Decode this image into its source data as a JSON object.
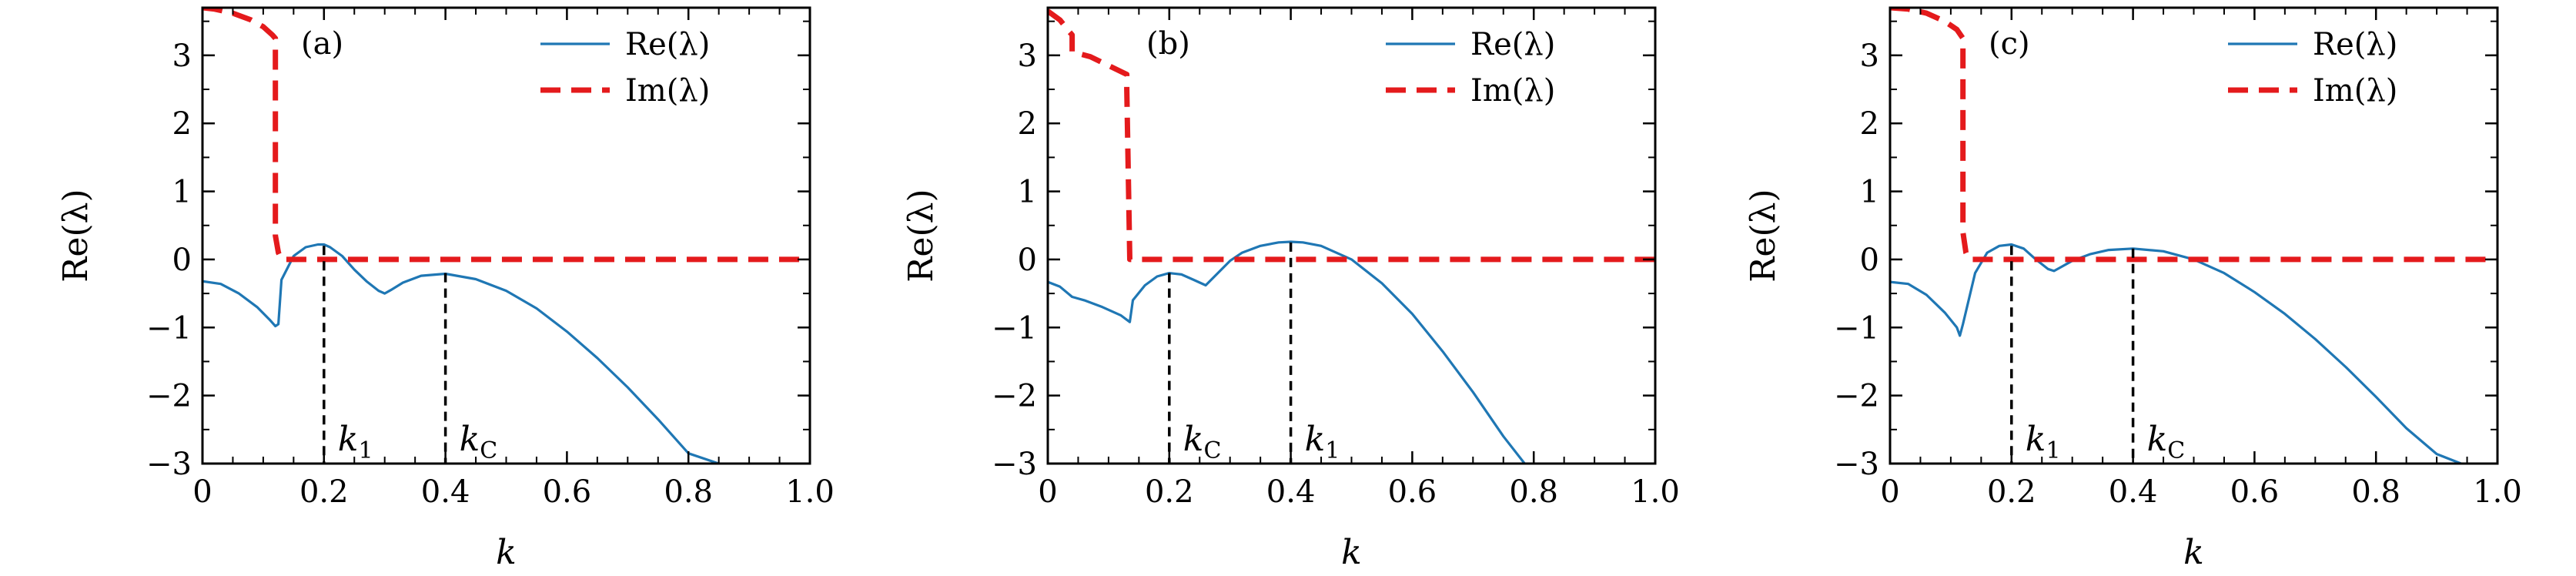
{
  "chart_data": [
    {
      "type": "line",
      "panel_label": "(a)",
      "xlabel": "k",
      "ylabel": "Re(λ)",
      "xlim": [
        0,
        1.0
      ],
      "ylim": [
        -3,
        3.7
      ],
      "xticks": [
        "0",
        "0.2",
        "0.4",
        "0.6",
        "0.8",
        "1.0"
      ],
      "yticks": [
        "3",
        "2",
        "1",
        "0",
        "−1",
        "−2",
        "−3"
      ],
      "legend_position": "top-right",
      "series": [
        {
          "name": "Re(λ)",
          "color": "#1f77b4",
          "style": "solid",
          "x": [
            0.0,
            0.03,
            0.06,
            0.09,
            0.11,
            0.12,
            0.125,
            0.13,
            0.15,
            0.17,
            0.19,
            0.2,
            0.21,
            0.23,
            0.25,
            0.27,
            0.29,
            0.3,
            0.31,
            0.33,
            0.36,
            0.4,
            0.45,
            0.5,
            0.55,
            0.6,
            0.65,
            0.7,
            0.75,
            0.8,
            0.85
          ],
          "y": [
            -0.32,
            -0.36,
            -0.5,
            -0.7,
            -0.88,
            -0.98,
            -0.95,
            -0.3,
            0.05,
            0.18,
            0.22,
            0.22,
            0.18,
            0.05,
            -0.15,
            -0.32,
            -0.46,
            -0.5,
            -0.45,
            -0.34,
            -0.24,
            -0.21,
            -0.29,
            -0.46,
            -0.72,
            -1.06,
            -1.45,
            -1.88,
            -2.35,
            -2.85,
            -3.0
          ]
        },
        {
          "name": "Im(λ)",
          "color": "#e41a1c",
          "style": "dashed",
          "x": [
            0.0,
            0.02,
            0.05,
            0.08,
            0.1,
            0.115,
            0.12,
            0.12,
            0.125,
            0.13,
            1.0
          ],
          "y": [
            3.7,
            3.68,
            3.62,
            3.52,
            3.42,
            3.3,
            3.25,
            0.35,
            0.1,
            0.0,
            0.0
          ]
        }
      ],
      "markers": [
        {
          "x": 0.2,
          "y_top": 0.2,
          "label": "k",
          "sub": "1"
        },
        {
          "x": 0.4,
          "y_top": -0.2,
          "label": "k",
          "sub": "C"
        }
      ]
    },
    {
      "type": "line",
      "panel_label": "(b)",
      "xlabel": "k",
      "ylabel": "Re(λ)",
      "xlim": [
        0,
        1.0
      ],
      "ylim": [
        -3,
        3.7
      ],
      "xticks": [
        "0",
        "0.2",
        "0.4",
        "0.6",
        "0.8",
        "1.0"
      ],
      "yticks": [
        "3",
        "2",
        "1",
        "0",
        "−1",
        "−2",
        "−3"
      ],
      "legend_position": "top-right",
      "series": [
        {
          "name": "Re(λ)",
          "color": "#1f77b4",
          "style": "solid",
          "x": [
            0.0,
            0.02,
            0.04,
            0.06,
            0.09,
            0.12,
            0.135,
            0.14,
            0.16,
            0.18,
            0.2,
            0.22,
            0.24,
            0.26,
            0.28,
            0.3,
            0.32,
            0.35,
            0.38,
            0.4,
            0.42,
            0.45,
            0.5,
            0.55,
            0.6,
            0.65,
            0.7,
            0.75,
            0.785
          ],
          "y": [
            -0.33,
            -0.4,
            -0.55,
            -0.6,
            -0.7,
            -0.82,
            -0.92,
            -0.6,
            -0.38,
            -0.25,
            -0.2,
            -0.22,
            -0.3,
            -0.38,
            -0.2,
            -0.02,
            0.1,
            0.2,
            0.25,
            0.26,
            0.25,
            0.2,
            0.0,
            -0.35,
            -0.8,
            -1.35,
            -1.95,
            -2.6,
            -3.0
          ]
        },
        {
          "name": "Im(λ)",
          "color": "#e41a1c",
          "style": "dashed",
          "x": [
            0.0,
            0.02,
            0.035,
            0.04,
            0.04,
            0.07,
            0.1,
            0.13,
            0.13,
            0.135,
            1.0
          ],
          "y": [
            3.65,
            3.52,
            3.35,
            3.3,
            3.05,
            2.98,
            2.85,
            2.72,
            2.5,
            0.0,
            0.0
          ]
        }
      ],
      "markers": [
        {
          "x": 0.2,
          "y_top": -0.2,
          "label": "k",
          "sub": "C"
        },
        {
          "x": 0.4,
          "y_top": 0.25,
          "label": "k",
          "sub": "1"
        }
      ]
    },
    {
      "type": "line",
      "panel_label": "(c)",
      "xlabel": "k",
      "ylabel": "Re(λ)",
      "xlim": [
        0,
        1.0
      ],
      "ylim": [
        -3,
        3.7
      ],
      "xticks": [
        "0",
        "0.2",
        "0.4",
        "0.6",
        "0.8",
        "1.0"
      ],
      "yticks": [
        "3",
        "2",
        "1",
        "0",
        "−1",
        "−2",
        "−3"
      ],
      "legend_position": "top-right",
      "series": [
        {
          "name": "Re(λ)",
          "color": "#1f77b4",
          "style": "solid",
          "x": [
            0.0,
            0.03,
            0.06,
            0.09,
            0.11,
            0.115,
            0.12,
            0.14,
            0.16,
            0.18,
            0.2,
            0.22,
            0.24,
            0.26,
            0.27,
            0.28,
            0.3,
            0.33,
            0.36,
            0.4,
            0.45,
            0.5,
            0.55,
            0.6,
            0.65,
            0.7,
            0.75,
            0.8,
            0.85,
            0.9,
            0.94
          ],
          "y": [
            -0.33,
            -0.36,
            -0.52,
            -0.78,
            -1.0,
            -1.12,
            -0.95,
            -0.2,
            0.1,
            0.2,
            0.22,
            0.16,
            0.0,
            -0.14,
            -0.17,
            -0.12,
            -0.02,
            0.08,
            0.14,
            0.16,
            0.12,
            0.0,
            -0.2,
            -0.48,
            -0.8,
            -1.17,
            -1.58,
            -2.02,
            -2.48,
            -2.86,
            -3.0
          ]
        },
        {
          "name": "Im(λ)",
          "color": "#e41a1c",
          "style": "dashed",
          "x": [
            0.0,
            0.03,
            0.06,
            0.09,
            0.11,
            0.12,
            0.12,
            0.125,
            0.13,
            1.0
          ],
          "y": [
            3.7,
            3.68,
            3.62,
            3.5,
            3.38,
            3.25,
            0.4,
            0.1,
            0.0,
            0.0
          ]
        }
      ],
      "markers": [
        {
          "x": 0.2,
          "y_top": 0.2,
          "label": "k",
          "sub": "1"
        },
        {
          "x": 0.4,
          "y_top": 0.16,
          "label": "k",
          "sub": "C"
        }
      ]
    }
  ]
}
